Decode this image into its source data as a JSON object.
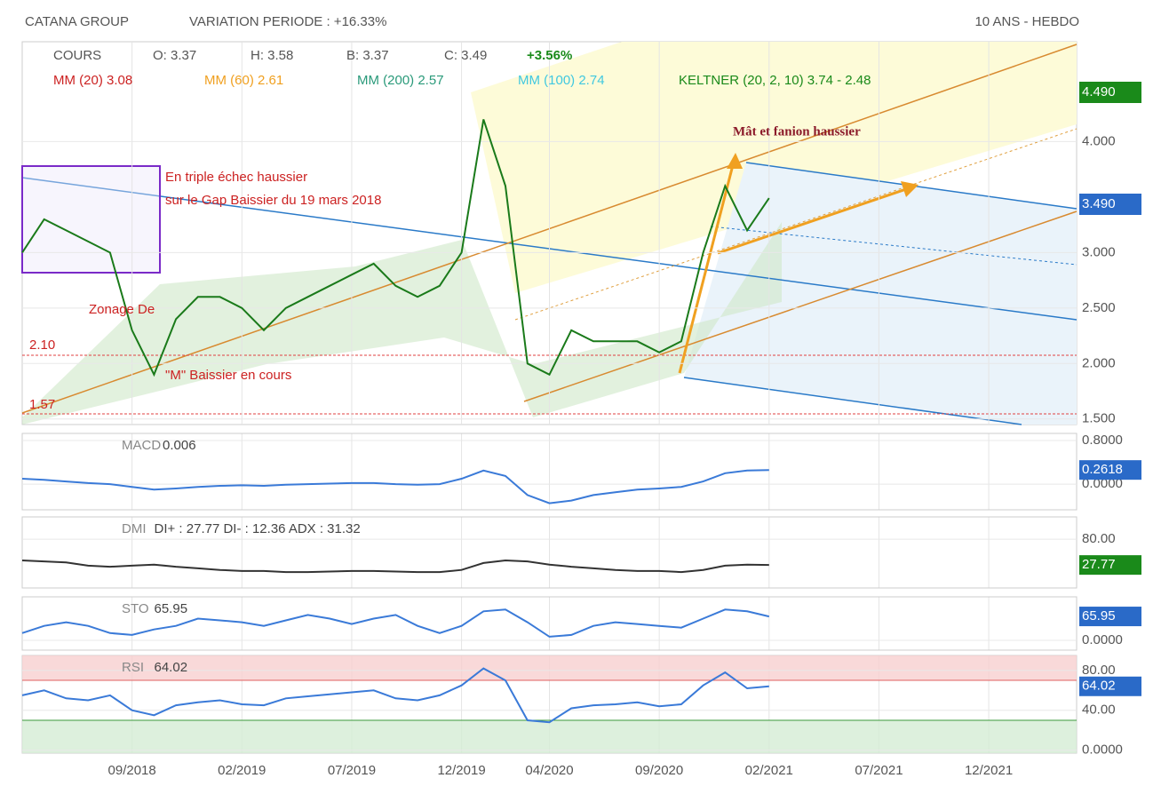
{
  "chart_data": [
    {
      "type": "line",
      "header": {
        "name": "CATANA GROUP",
        "variation": "VARIATION PERIODE : +16.33%",
        "period": "10 ANS - HEBDO"
      },
      "legend": [
        {
          "text": "COURS",
          "color": "#555555"
        },
        {
          "text": "O: 3.37",
          "color": "#555555"
        },
        {
          "text": "H: 3.58",
          "color": "#555555"
        },
        {
          "text": "B: 3.37",
          "color": "#555555"
        },
        {
          "text": "C: 3.49",
          "color": "#555555"
        },
        {
          "text": "+3.56%",
          "color": "#1a8a1a"
        },
        {
          "text": "MM (20) 3.08",
          "color": "#cc2222"
        },
        {
          "text": "MM (60) 2.61",
          "color": "#f0a020"
        },
        {
          "text": "MM (200) 2.57",
          "color": "#2a9a7a"
        },
        {
          "text": "MM (100) 2.74",
          "color": "#40c8e0"
        },
        {
          "text": "KELTNER (20, 2, 10) 3.74 - 2.48",
          "color": "#1a8a1a"
        }
      ],
      "annotations": [
        {
          "text": "Mât et fanion haussier",
          "color": "#8b1a2a"
        },
        {
          "text": "En triple échec haussier",
          "color": "#cc2222"
        },
        {
          "text": "sur le Gap Baissier du 19 mars 2018",
          "color": "#cc2222"
        },
        {
          "text": "Zonage De",
          "color": "#cc2222"
        },
        {
          "text": "\"M\" Baissier en cours",
          "color": "#cc2222"
        },
        {
          "text": "2.10",
          "color": "#cc2222"
        },
        {
          "text": "1.57",
          "color": "#cc2222"
        }
      ],
      "badges": [
        {
          "text": "4.490",
          "color": "#1a8a1a"
        },
        {
          "text": "3.490",
          "color": "#2a6ac8"
        }
      ],
      "x": [
        "04/2018",
        "05/2018",
        "06/2018",
        "07/2018",
        "08/2018",
        "09/2018",
        "10/2018",
        "11/2018",
        "12/2018",
        "01/2019",
        "02/2019",
        "03/2019",
        "04/2019",
        "05/2019",
        "06/2019",
        "07/2019",
        "08/2019",
        "09/2019",
        "10/2019",
        "11/2019",
        "12/2019",
        "01/2020",
        "02/2020",
        "03/2020",
        "04/2020",
        "05/2020",
        "06/2020",
        "07/2020",
        "08/2020",
        "09/2020",
        "10/2020",
        "11/2020",
        "12/2020",
        "01/2021",
        "02/2021"
      ],
      "xlim": [
        "04/2018",
        "04/2022"
      ],
      "xticks": [
        "09/2018",
        "02/2019",
        "07/2019",
        "12/2019",
        "04/2020",
        "09/2020",
        "02/2021",
        "07/2021",
        "12/2021"
      ],
      "ylim": [
        1.45,
        4.9
      ],
      "yticks": [
        {
          "value": 1.5,
          "label": "1.500"
        },
        {
          "value": 2,
          "label": "2.000"
        },
        {
          "value": 2.5,
          "label": "2.500"
        },
        {
          "value": 3,
          "label": "3.000"
        },
        {
          "value": 4,
          "label": "4.000"
        }
      ],
      "series": [
        {
          "name": "COURS",
          "color": "#1a7a1a",
          "values": [
            3.0,
            3.3,
            3.2,
            3.1,
            3.0,
            2.3,
            1.9,
            2.4,
            2.6,
            2.6,
            2.5,
            2.3,
            2.5,
            2.6,
            2.7,
            2.8,
            2.9,
            2.7,
            2.6,
            2.7,
            3.0,
            4.2,
            3.6,
            2.0,
            1.9,
            2.3,
            2.2,
            2.2,
            2.2,
            2.1,
            2.2,
            3.0,
            3.6,
            3.2,
            3.49
          ]
        }
      ]
    },
    {
      "type": "line",
      "label": "MACD",
      "reading": "0.006",
      "badge": {
        "text": "0.2618",
        "color": "#2a6ac8"
      },
      "ylim": [
        -0.47,
        0.93
      ],
      "yticks": [
        {
          "value": 0.8,
          "label": "0.8000"
        },
        {
          "value": 0,
          "label": "0.0000"
        }
      ],
      "series": [
        {
          "name": "MACD",
          "color": "#3a7ad8",
          "values": [
            0.1,
            0.08,
            0.05,
            0.02,
            0,
            -0.05,
            -0.1,
            -0.08,
            -0.05,
            -0.03,
            -0.02,
            -0.03,
            -0.01,
            0,
            0.01,
            0.02,
            0.02,
            0.0,
            -0.01,
            0.0,
            0.1,
            0.25,
            0.15,
            -0.2,
            -0.35,
            -0.3,
            -0.2,
            -0.15,
            -0.1,
            -0.08,
            -0.05,
            0.05,
            0.2,
            0.25,
            0.26
          ]
        }
      ]
    },
    {
      "type": "line",
      "label": "DMI",
      "reading": "DI+ : 27.77 DI- : 12.36 ADX : 31.32",
      "badge": {
        "text": "27.77",
        "color": "#1a8a1a"
      },
      "ylim": [
        -12,
        122
      ],
      "yticks": [
        {
          "value": 80,
          "label": "80.00"
        }
      ],
      "series": [
        {
          "name": "ADX",
          "color": "#333333",
          "values": [
            40,
            38,
            36,
            30,
            28,
            30,
            32,
            28,
            25,
            22,
            20,
            20,
            18,
            18,
            19,
            20,
            20,
            19,
            18,
            18,
            22,
            35,
            40,
            38,
            32,
            28,
            25,
            22,
            20,
            20,
            18,
            22,
            30,
            32,
            31.32
          ]
        }
      ]
    },
    {
      "type": "line",
      "label": "STO",
      "reading": "65.95",
      "badge": {
        "text": "65.95",
        "color": "#2a6ac8"
      },
      "ylim": [
        -27,
        120
      ],
      "yticks": [
        {
          "value": 0,
          "label": "0.0000"
        }
      ],
      "series": [
        {
          "name": "STO",
          "color": "#3a7ad8",
          "values": [
            20,
            40,
            50,
            40,
            20,
            15,
            30,
            40,
            60,
            55,
            50,
            40,
            55,
            70,
            60,
            45,
            60,
            70,
            40,
            20,
            40,
            80,
            85,
            50,
            10,
            15,
            40,
            50,
            45,
            40,
            35,
            60,
            85,
            80,
            65.95
          ]
        }
      ]
    },
    {
      "type": "line",
      "label": "RSI",
      "reading": "64.02",
      "badge": {
        "text": "64.02",
        "color": "#2a6ac8"
      },
      "ylim": [
        -3,
        95
      ],
      "yticks": [
        {
          "value": 80,
          "label": "80.00"
        },
        {
          "value": 40,
          "label": "40.00"
        },
        {
          "value": 0,
          "label": "0.0000"
        }
      ],
      "overbought": 70,
      "oversold": 30,
      "series": [
        {
          "name": "RSI",
          "color": "#3a7ad8",
          "values": [
            55,
            60,
            52,
            50,
            55,
            40,
            35,
            45,
            48,
            50,
            46,
            45,
            52,
            54,
            56,
            58,
            60,
            52,
            50,
            55,
            65,
            82,
            70,
            30,
            28,
            42,
            45,
            46,
            48,
            44,
            46,
            65,
            78,
            62,
            64.02
          ]
        }
      ]
    }
  ]
}
